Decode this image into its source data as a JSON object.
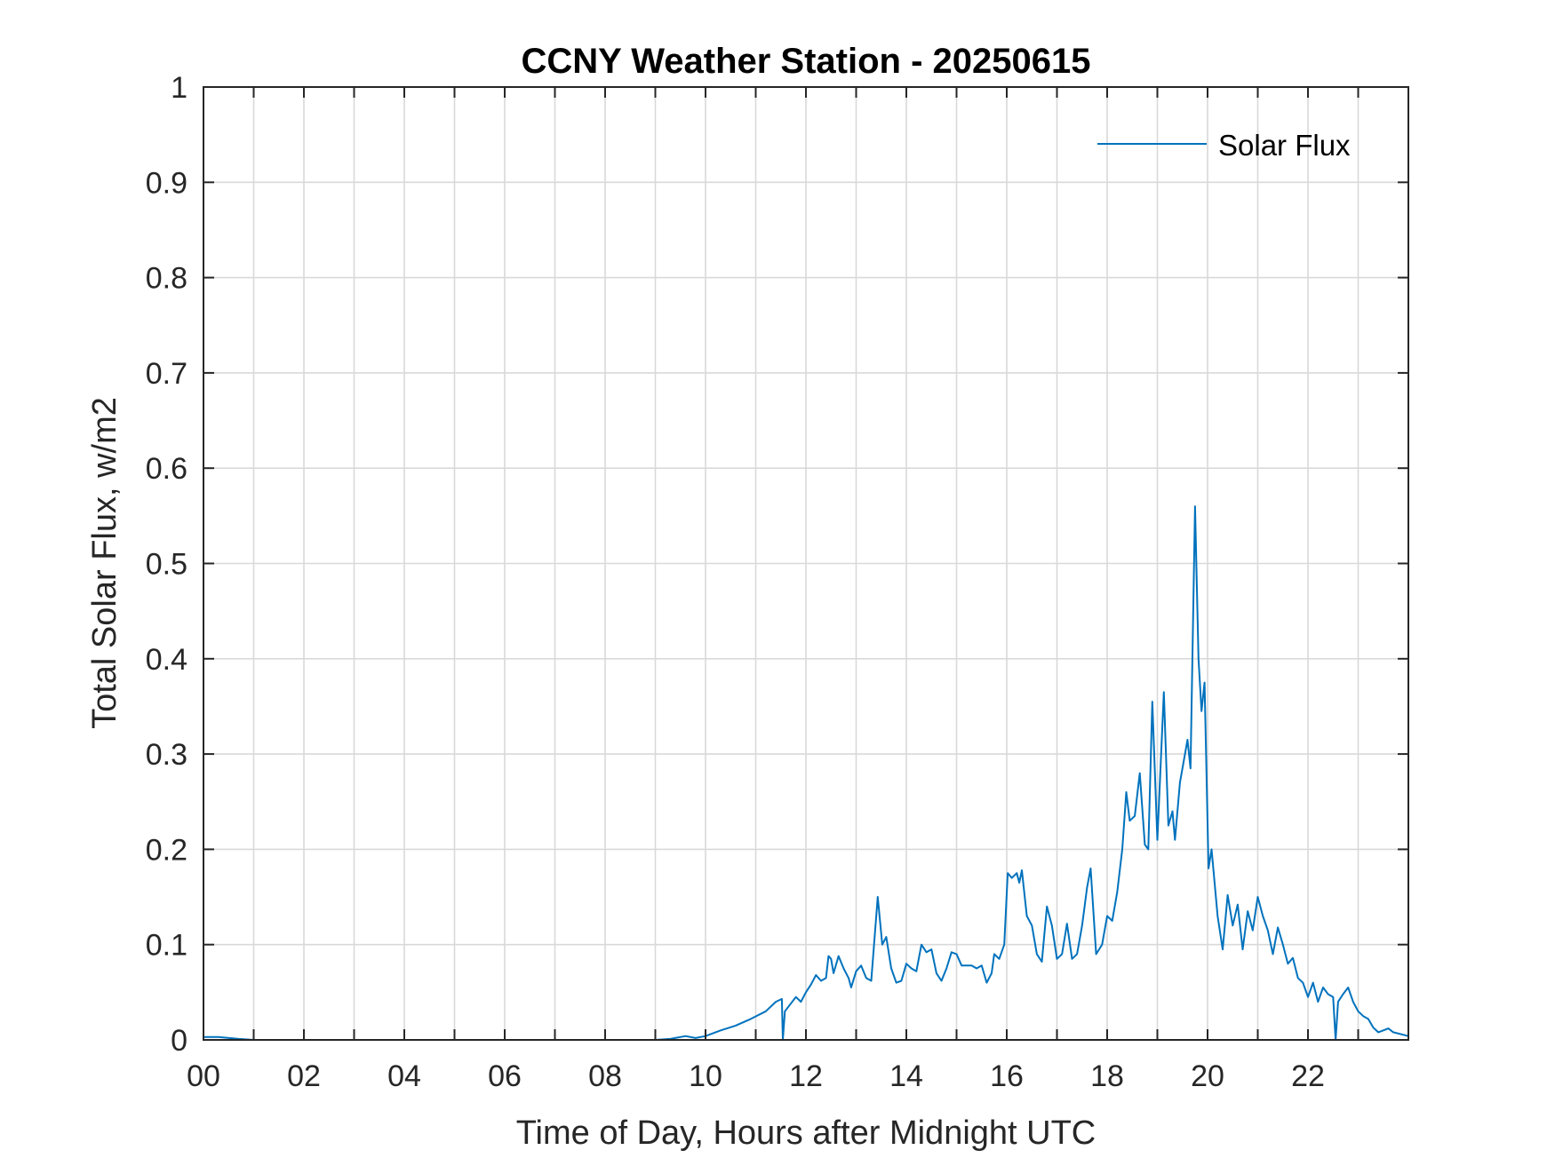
{
  "chart_data": {
    "type": "line",
    "title": "CCNY Weather Station - 20250615",
    "xlabel": "Time of Day, Hours after Midnight UTC",
    "ylabel": "Total Solar Flux, w/m2",
    "xlim": [
      0,
      24
    ],
    "ylim": [
      0,
      1
    ],
    "xticks": [
      0,
      2,
      4,
      6,
      8,
      10,
      12,
      14,
      16,
      18,
      20,
      22
    ],
    "xtick_labels": [
      "00",
      "02",
      "04",
      "06",
      "08",
      "10",
      "12",
      "14",
      "16",
      "18",
      "20",
      "22"
    ],
    "yticks": [
      0,
      0.1,
      0.2,
      0.3,
      0.4,
      0.5,
      0.6,
      0.7,
      0.8,
      0.9,
      1
    ],
    "ytick_labels": [
      "0",
      "0.1",
      "0.2",
      "0.3",
      "0.4",
      "0.5",
      "0.6",
      "0.7",
      "0.8",
      "0.9",
      "1"
    ],
    "grid": true,
    "legend_placement": "top-right",
    "series": [
      {
        "name": "Solar Flux",
        "color": "#0072BD",
        "points": [
          [
            0,
            0.003
          ],
          [
            0.3,
            0.003
          ],
          [
            0.7,
            0.001
          ],
          [
            1,
            0
          ],
          [
            3,
            0
          ],
          [
            5,
            0
          ],
          [
            7,
            0
          ],
          [
            9,
            0
          ],
          [
            9.3,
            0.001
          ],
          [
            9.6,
            0.004
          ],
          [
            9.8,
            0.002
          ],
          [
            10.0,
            0.004
          ],
          [
            10.3,
            0.01
          ],
          [
            10.6,
            0.015
          ],
          [
            10.9,
            0.022
          ],
          [
            11.2,
            0.03
          ],
          [
            11.4,
            0.04
          ],
          [
            11.52,
            0.043
          ],
          [
            11.54,
            0
          ],
          [
            11.58,
            0.03
          ],
          [
            11.8,
            0.045
          ],
          [
            11.9,
            0.04
          ],
          [
            12.0,
            0.05
          ],
          [
            12.1,
            0.058
          ],
          [
            12.2,
            0.068
          ],
          [
            12.3,
            0.062
          ],
          [
            12.4,
            0.065
          ],
          [
            12.45,
            0.088
          ],
          [
            12.5,
            0.085
          ],
          [
            12.55,
            0.07
          ],
          [
            12.65,
            0.088
          ],
          [
            12.75,
            0.075
          ],
          [
            12.85,
            0.065
          ],
          [
            12.9,
            0.055
          ],
          [
            13.0,
            0.072
          ],
          [
            13.1,
            0.078
          ],
          [
            13.2,
            0.065
          ],
          [
            13.3,
            0.062
          ],
          [
            13.43,
            0.15
          ],
          [
            13.52,
            0.1
          ],
          [
            13.6,
            0.108
          ],
          [
            13.7,
            0.075
          ],
          [
            13.8,
            0.06
          ],
          [
            13.9,
            0.062
          ],
          [
            14.0,
            0.08
          ],
          [
            14.1,
            0.075
          ],
          [
            14.2,
            0.072
          ],
          [
            14.3,
            0.1
          ],
          [
            14.4,
            0.092
          ],
          [
            14.5,
            0.095
          ],
          [
            14.6,
            0.07
          ],
          [
            14.7,
            0.062
          ],
          [
            14.8,
            0.075
          ],
          [
            14.9,
            0.092
          ],
          [
            15.0,
            0.09
          ],
          [
            15.1,
            0.078
          ],
          [
            15.3,
            0.078
          ],
          [
            15.4,
            0.075
          ],
          [
            15.5,
            0.078
          ],
          [
            15.6,
            0.06
          ],
          [
            15.7,
            0.07
          ],
          [
            15.75,
            0.09
          ],
          [
            15.85,
            0.085
          ],
          [
            15.95,
            0.1
          ],
          [
            16.02,
            0.175
          ],
          [
            16.1,
            0.17
          ],
          [
            16.2,
            0.175
          ],
          [
            16.25,
            0.165
          ],
          [
            16.3,
            0.178
          ],
          [
            16.4,
            0.13
          ],
          [
            16.5,
            0.12
          ],
          [
            16.6,
            0.09
          ],
          [
            16.7,
            0.082
          ],
          [
            16.8,
            0.14
          ],
          [
            16.9,
            0.12
          ],
          [
            17.0,
            0.085
          ],
          [
            17.1,
            0.09
          ],
          [
            17.2,
            0.122
          ],
          [
            17.3,
            0.085
          ],
          [
            17.4,
            0.09
          ],
          [
            17.5,
            0.12
          ],
          [
            17.6,
            0.16
          ],
          [
            17.67,
            0.18
          ],
          [
            17.78,
            0.09
          ],
          [
            17.9,
            0.1
          ],
          [
            18.0,
            0.13
          ],
          [
            18.1,
            0.125
          ],
          [
            18.2,
            0.155
          ],
          [
            18.3,
            0.2
          ],
          [
            18.38,
            0.26
          ],
          [
            18.45,
            0.23
          ],
          [
            18.55,
            0.235
          ],
          [
            18.65,
            0.28
          ],
          [
            18.75,
            0.205
          ],
          [
            18.82,
            0.2
          ],
          [
            18.9,
            0.355
          ],
          [
            19.0,
            0.21
          ],
          [
            19.13,
            0.365
          ],
          [
            19.22,
            0.225
          ],
          [
            19.3,
            0.24
          ],
          [
            19.35,
            0.21
          ],
          [
            19.45,
            0.27
          ],
          [
            19.55,
            0.3
          ],
          [
            19.6,
            0.315
          ],
          [
            19.66,
            0.285
          ],
          [
            19.75,
            0.56
          ],
          [
            19.82,
            0.4
          ],
          [
            19.88,
            0.345
          ],
          [
            19.94,
            0.375
          ],
          [
            20.02,
            0.18
          ],
          [
            20.08,
            0.2
          ],
          [
            20.2,
            0.13
          ],
          [
            20.3,
            0.095
          ],
          [
            20.4,
            0.152
          ],
          [
            20.5,
            0.12
          ],
          [
            20.6,
            0.142
          ],
          [
            20.7,
            0.095
          ],
          [
            20.8,
            0.135
          ],
          [
            20.9,
            0.115
          ],
          [
            21.0,
            0.15
          ],
          [
            21.1,
            0.13
          ],
          [
            21.2,
            0.115
          ],
          [
            21.3,
            0.09
          ],
          [
            21.4,
            0.118
          ],
          [
            21.5,
            0.1
          ],
          [
            21.6,
            0.08
          ],
          [
            21.7,
            0.086
          ],
          [
            21.8,
            0.065
          ],
          [
            21.9,
            0.06
          ],
          [
            22.0,
            0.045
          ],
          [
            22.1,
            0.06
          ],
          [
            22.2,
            0.04
          ],
          [
            22.3,
            0.055
          ],
          [
            22.4,
            0.048
          ],
          [
            22.5,
            0.045
          ],
          [
            22.55,
            0
          ],
          [
            22.6,
            0.04
          ],
          [
            22.7,
            0.048
          ],
          [
            22.8,
            0.055
          ],
          [
            22.9,
            0.04
          ],
          [
            23.0,
            0.03
          ],
          [
            23.1,
            0.025
          ],
          [
            23.2,
            0.022
          ],
          [
            23.3,
            0.013
          ],
          [
            23.4,
            0.008
          ],
          [
            23.5,
            0.01
          ],
          [
            23.6,
            0.012
          ],
          [
            23.7,
            0.008
          ],
          [
            24.0,
            0.004
          ]
        ]
      }
    ]
  }
}
